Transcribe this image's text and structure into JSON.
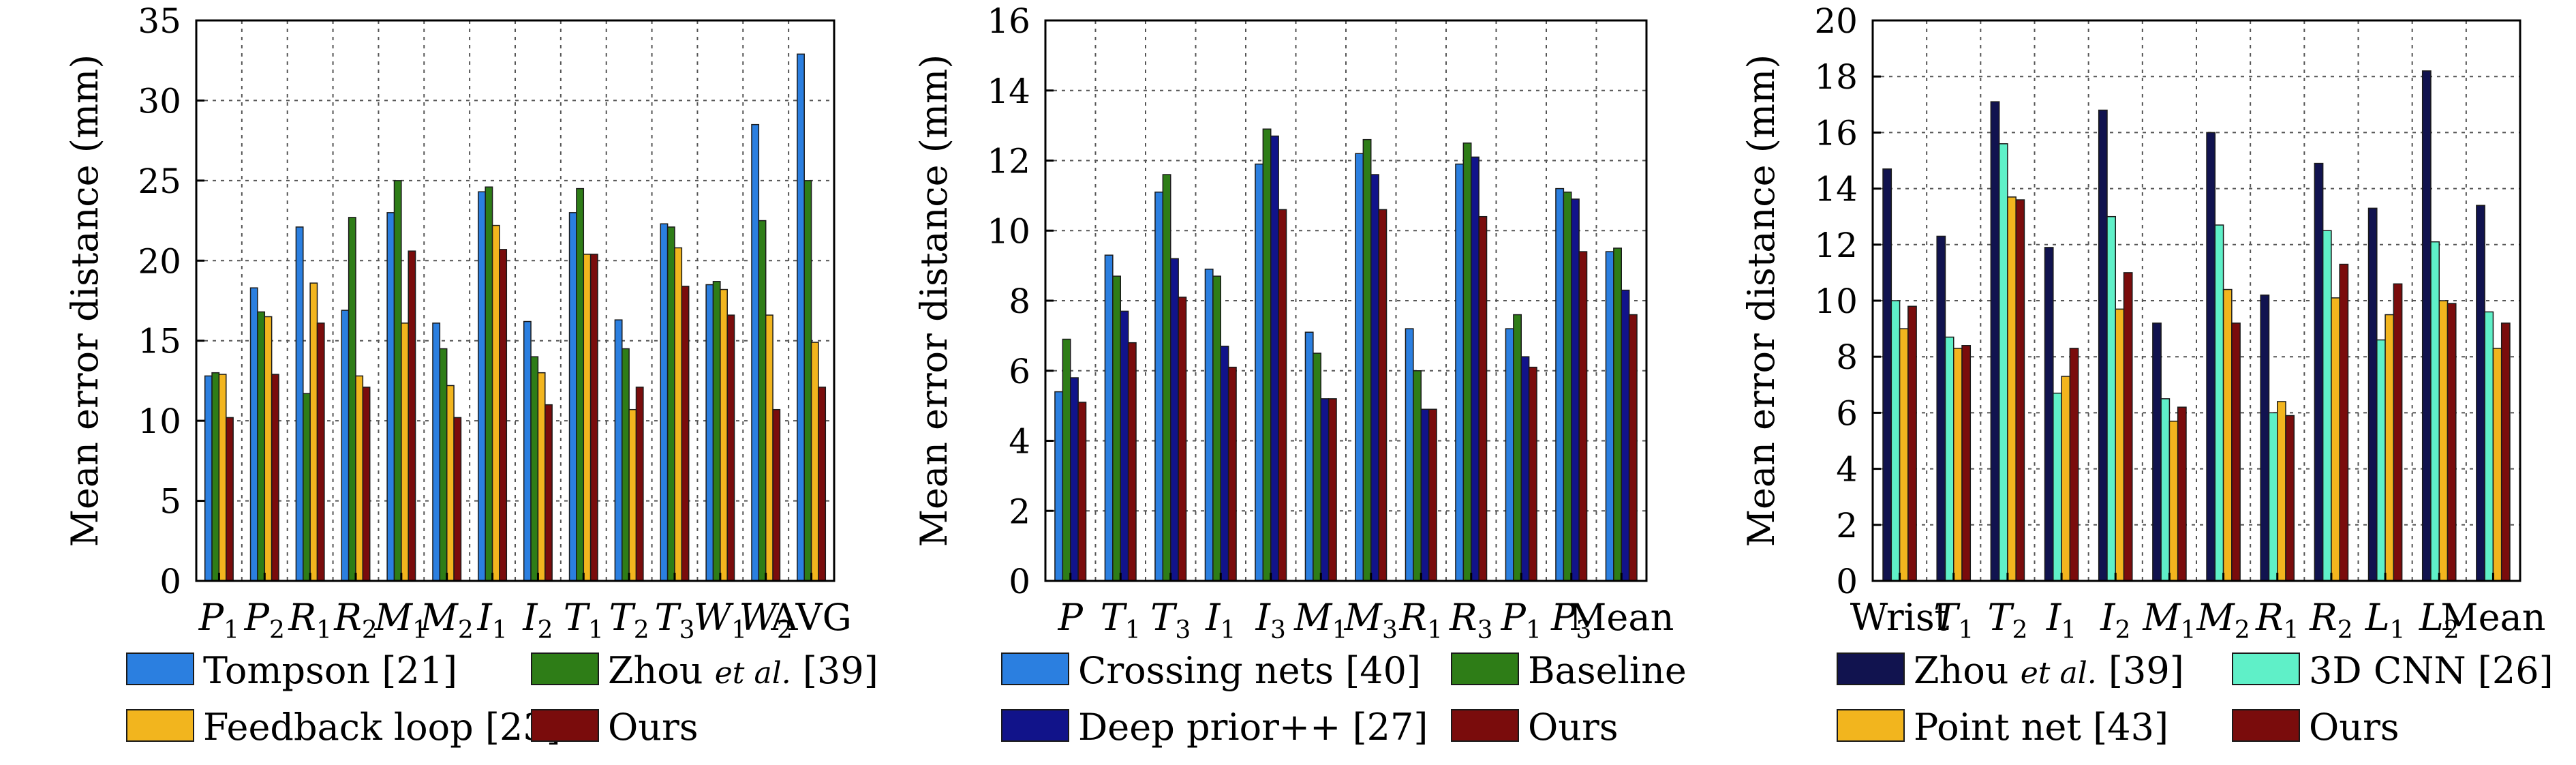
{
  "chart_data": [
    {
      "type": "bar",
      "ylabel": "Mean error distance (mm)",
      "ylim": [
        0,
        35
      ],
      "yticks": [
        0,
        5,
        10,
        15,
        20,
        25,
        30,
        35
      ],
      "grid": true,
      "legend_position": "below",
      "categories": [
        {
          "base": "P",
          "sub": "1"
        },
        {
          "base": "P",
          "sub": "2"
        },
        {
          "base": "R",
          "sub": "1"
        },
        {
          "base": "R",
          "sub": "2"
        },
        {
          "base": "M",
          "sub": "1"
        },
        {
          "base": "M",
          "sub": "2"
        },
        {
          "base": "I",
          "sub": "1"
        },
        {
          "base": "I",
          "sub": "2"
        },
        {
          "base": "T",
          "sub": "1"
        },
        {
          "base": "T",
          "sub": "2"
        },
        {
          "base": "T",
          "sub": "3"
        },
        {
          "base": "W",
          "sub": "1"
        },
        {
          "base": "W",
          "sub": "2"
        },
        {
          "base": "AVG",
          "sub": ""
        }
      ],
      "series": [
        {
          "name": "Tompson [21]",
          "color": "#2b7fe0",
          "values": [
            12.8,
            18.3,
            22.1,
            16.9,
            23.0,
            16.1,
            24.3,
            16.2,
            23.0,
            16.3,
            22.3,
            18.5,
            28.5,
            32.9
          ]
        },
        {
          "name": "Zhou et al. [39]",
          "color": "#2e7d17",
          "values": [
            13.0,
            16.8,
            11.7,
            22.7,
            25.0,
            14.5,
            24.6,
            14.0,
            24.5,
            14.5,
            22.1,
            18.7,
            22.5,
            25.0
          ]
        },
        {
          "name": "Feedback loop [23]",
          "color": "#f2b51e",
          "values": [
            12.9,
            16.5,
            18.6,
            12.8,
            16.1,
            12.2,
            22.2,
            13.0,
            20.4,
            10.7,
            20.8,
            18.2,
            16.6,
            14.9
          ]
        },
        {
          "name": "Ours",
          "color": "#7a0c0c",
          "values": [
            10.2,
            12.9,
            16.1,
            12.1,
            20.6,
            10.2,
            20.7,
            11.0,
            20.4,
            12.1,
            18.4,
            16.6,
            10.7,
            12.1
          ]
        }
      ]
    },
    {
      "type": "bar",
      "ylabel": "Mean error distance (mm)",
      "ylim": [
        0,
        16
      ],
      "yticks": [
        0,
        2,
        4,
        6,
        8,
        10,
        12,
        14,
        16
      ],
      "grid": true,
      "legend_position": "below",
      "categories": [
        {
          "base": "P",
          "sub": ""
        },
        {
          "base": "T",
          "sub": "1"
        },
        {
          "base": "T",
          "sub": "3"
        },
        {
          "base": "I",
          "sub": "1"
        },
        {
          "base": "I",
          "sub": "3"
        },
        {
          "base": "M",
          "sub": "1"
        },
        {
          "base": "M",
          "sub": "3"
        },
        {
          "base": "R",
          "sub": "1"
        },
        {
          "base": "R",
          "sub": "3"
        },
        {
          "base": "P",
          "sub": "1"
        },
        {
          "base": "P",
          "sub": "3"
        },
        {
          "base": "Mean",
          "sub": ""
        }
      ],
      "series": [
        {
          "name": "Crossing nets [40]",
          "color": "#2b7fe0",
          "values": [
            5.4,
            9.3,
            11.1,
            8.9,
            11.9,
            7.1,
            12.2,
            7.2,
            11.9,
            7.2,
            11.2,
            9.4
          ]
        },
        {
          "name": "Baseline",
          "color": "#2e7d17",
          "values": [
            6.9,
            8.7,
            11.6,
            8.7,
            12.9,
            6.5,
            12.6,
            6.0,
            12.5,
            7.6,
            11.1,
            9.5
          ]
        },
        {
          "name": "Deep prior++ [27]",
          "color": "#11138a",
          "values": [
            5.8,
            7.7,
            9.2,
            6.7,
            12.7,
            5.2,
            11.6,
            4.9,
            12.1,
            6.4,
            10.9,
            8.3
          ]
        },
        {
          "name": "Ours",
          "color": "#7a0c0c",
          "values": [
            5.1,
            6.8,
            8.1,
            6.1,
            10.6,
            5.2,
            10.6,
            4.9,
            10.4,
            6.1,
            9.4,
            7.6
          ]
        }
      ]
    },
    {
      "type": "bar",
      "ylabel": "Mean error distance (mm)",
      "ylim": [
        0,
        20
      ],
      "yticks": [
        0,
        2,
        4,
        6,
        8,
        10,
        12,
        14,
        16,
        18,
        20
      ],
      "grid": true,
      "legend_position": "below",
      "categories": [
        {
          "base": "Wrist",
          "sub": ""
        },
        {
          "base": "T",
          "sub": "1"
        },
        {
          "base": "T",
          "sub": "2"
        },
        {
          "base": "I",
          "sub": "1"
        },
        {
          "base": "I",
          "sub": "2"
        },
        {
          "base": "M",
          "sub": "1"
        },
        {
          "base": "M",
          "sub": "2"
        },
        {
          "base": "R",
          "sub": "1"
        },
        {
          "base": "R",
          "sub": "2"
        },
        {
          "base": "L",
          "sub": "1"
        },
        {
          "base": "L",
          "sub": "2"
        },
        {
          "base": "Mean",
          "sub": ""
        }
      ],
      "series": [
        {
          "name": "Zhou et al. [39]",
          "color": "#11134f",
          "values": [
            14.7,
            12.3,
            17.1,
            11.9,
            16.8,
            9.2,
            16.0,
            10.2,
            14.9,
            13.3,
            18.2,
            13.4
          ]
        },
        {
          "name": "3D CNN [26]",
          "color": "#5ff0c8",
          "values": [
            10.0,
            8.7,
            15.6,
            6.7,
            13.0,
            6.5,
            12.7,
            6.0,
            12.5,
            8.6,
            12.1,
            9.6
          ]
        },
        {
          "name": "Point net [43]",
          "color": "#f2b51e",
          "values": [
            9.0,
            8.3,
            13.7,
            7.3,
            9.7,
            5.7,
            10.4,
            6.4,
            10.1,
            9.5,
            10.0,
            8.3
          ]
        },
        {
          "name": "Ours",
          "color": "#7a0c0c",
          "values": [
            9.8,
            8.4,
            13.6,
            8.3,
            11.0,
            6.2,
            9.2,
            5.9,
            11.3,
            10.6,
            9.9,
            9.2
          ]
        }
      ]
    }
  ]
}
